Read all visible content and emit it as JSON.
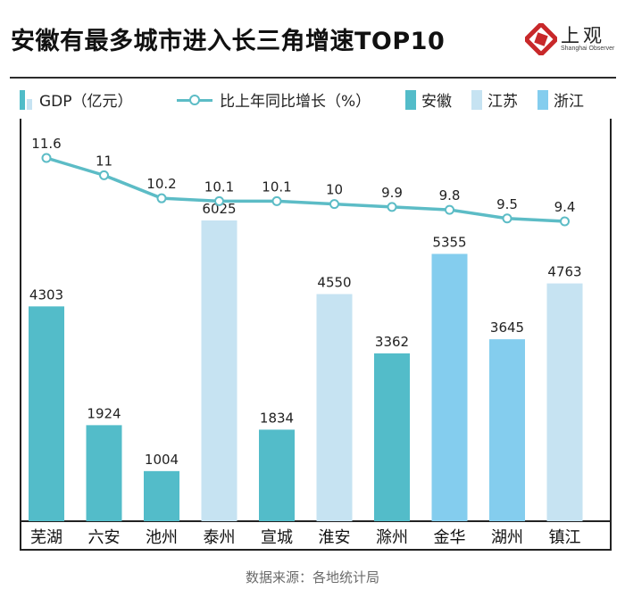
{
  "header": {
    "title": "安徽有最多城市进入长三角增速TOP10",
    "logo_cn": "上观",
    "logo_en": "Shanghai Observer"
  },
  "legend": {
    "gdp": "GDP（亿元）",
    "growth": "比上年同比增长（%）",
    "anhui": "安徽",
    "jiangsu": "江苏",
    "zhejiang": "浙江"
  },
  "colors": {
    "安徽": "#53bcc9",
    "江苏": "#c6e3f2",
    "浙江": "#84cdee",
    "line": "#5cbcc6"
  },
  "chart_data": {
    "type": "bar",
    "title": "安徽有最多城市进入长三角增速TOP10",
    "categories": [
      "芜湖",
      "六安",
      "池州",
      "泰州",
      "宣城",
      "淮安",
      "滁州",
      "金华",
      "湖州",
      "镇江"
    ],
    "province": [
      "安徽",
      "安徽",
      "安徽",
      "江苏",
      "安徽",
      "江苏",
      "安徽",
      "浙江",
      "浙江",
      "江苏"
    ],
    "series": [
      {
        "name": "GDP（亿元）",
        "type": "bar",
        "values": [
          4303,
          1924,
          1004,
          6025,
          1834,
          4550,
          3362,
          5355,
          3645,
          4763
        ]
      },
      {
        "name": "比上年同比增长（%）",
        "type": "line",
        "values": [
          11.6,
          11,
          10.2,
          10.1,
          10.1,
          10,
          9.9,
          9.8,
          9.5,
          9.4
        ]
      }
    ],
    "legend_position": "top",
    "grid": false
  },
  "footer": {
    "source": "数据来源：各地统计局"
  }
}
